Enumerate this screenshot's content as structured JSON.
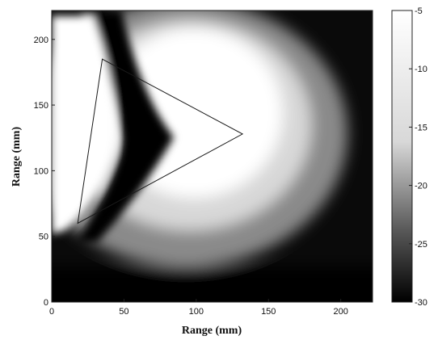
{
  "chart_data": {
    "type": "heatmap",
    "title": "",
    "xlabel": "Range (mm)",
    "ylabel": "Range (mm)",
    "xlim": [
      0,
      222
    ],
    "ylim": [
      0,
      222
    ],
    "x_ticks": [
      0,
      50,
      100,
      150,
      200
    ],
    "y_ticks": [
      0,
      50,
      100,
      150,
      200
    ],
    "colorbar": {
      "range": [
        -30,
        -5
      ],
      "ticks": [
        -5,
        -10,
        -15,
        -20,
        -25,
        -30
      ],
      "colormap": "gray"
    },
    "overlay_triangle": [
      [
        18,
        60
      ],
      [
        35,
        185
      ],
      [
        132,
        128
      ]
    ],
    "field_approx_dB": {
      "background": -30,
      "left_lobe_peak": -5,
      "main_lobe_peak": -5,
      "main_lobe_center": [
        100,
        135
      ],
      "shadow_zone_min": -30
    }
  }
}
